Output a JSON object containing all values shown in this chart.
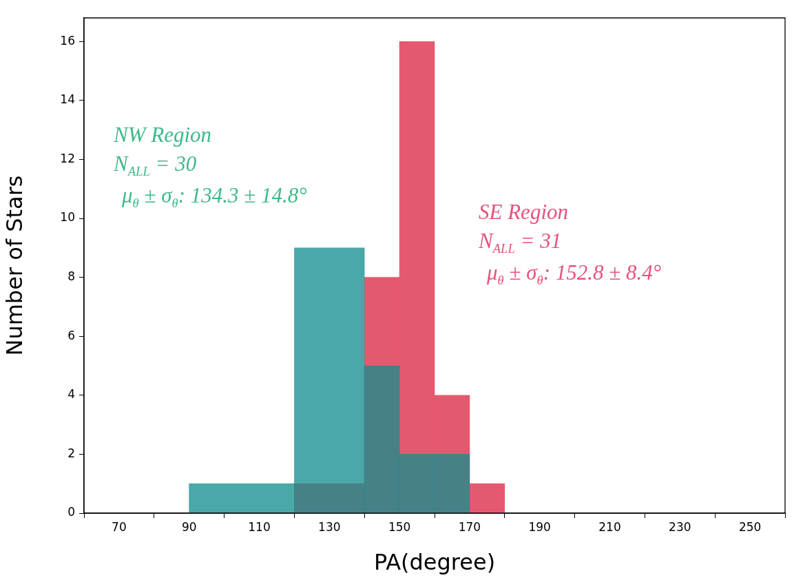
{
  "chart_data": {
    "type": "histogram",
    "xlabel": "PA(degree)",
    "ylabel": "Number of Stars",
    "bins": [
      90,
      120,
      140,
      150,
      160,
      170,
      180
    ],
    "series": [
      {
        "color": "#4ba8a8",
        "values": [
          1,
          9,
          5,
          2,
          2,
          0
        ]
      },
      {
        "color": "#e5596f",
        "values": [
          0,
          1,
          8,
          16,
          4,
          1
        ]
      }
    ],
    "xlim": [
      60,
      260
    ],
    "xticks": [
      70,
      90,
      110,
      130,
      150,
      170,
      190,
      210,
      230,
      250
    ],
    "ylim": [
      0,
      16.8
    ],
    "yticks": [
      0,
      2,
      4,
      6,
      8,
      10,
      12,
      14,
      16
    ],
    "grid": false,
    "legend": false,
    "annotations": [
      "NW Region",
      "N$_{ALL}$ = 30",
      "μ$_{θ}$ ± σ$_{θ}$: 134.3 ± 14.8°",
      "SE Region",
      "N$_{ALL}$ = 31",
      "μ$_{θ}$ ± σ$_{θ}$: 152.8 ± 8.4°"
    ]
  }
}
